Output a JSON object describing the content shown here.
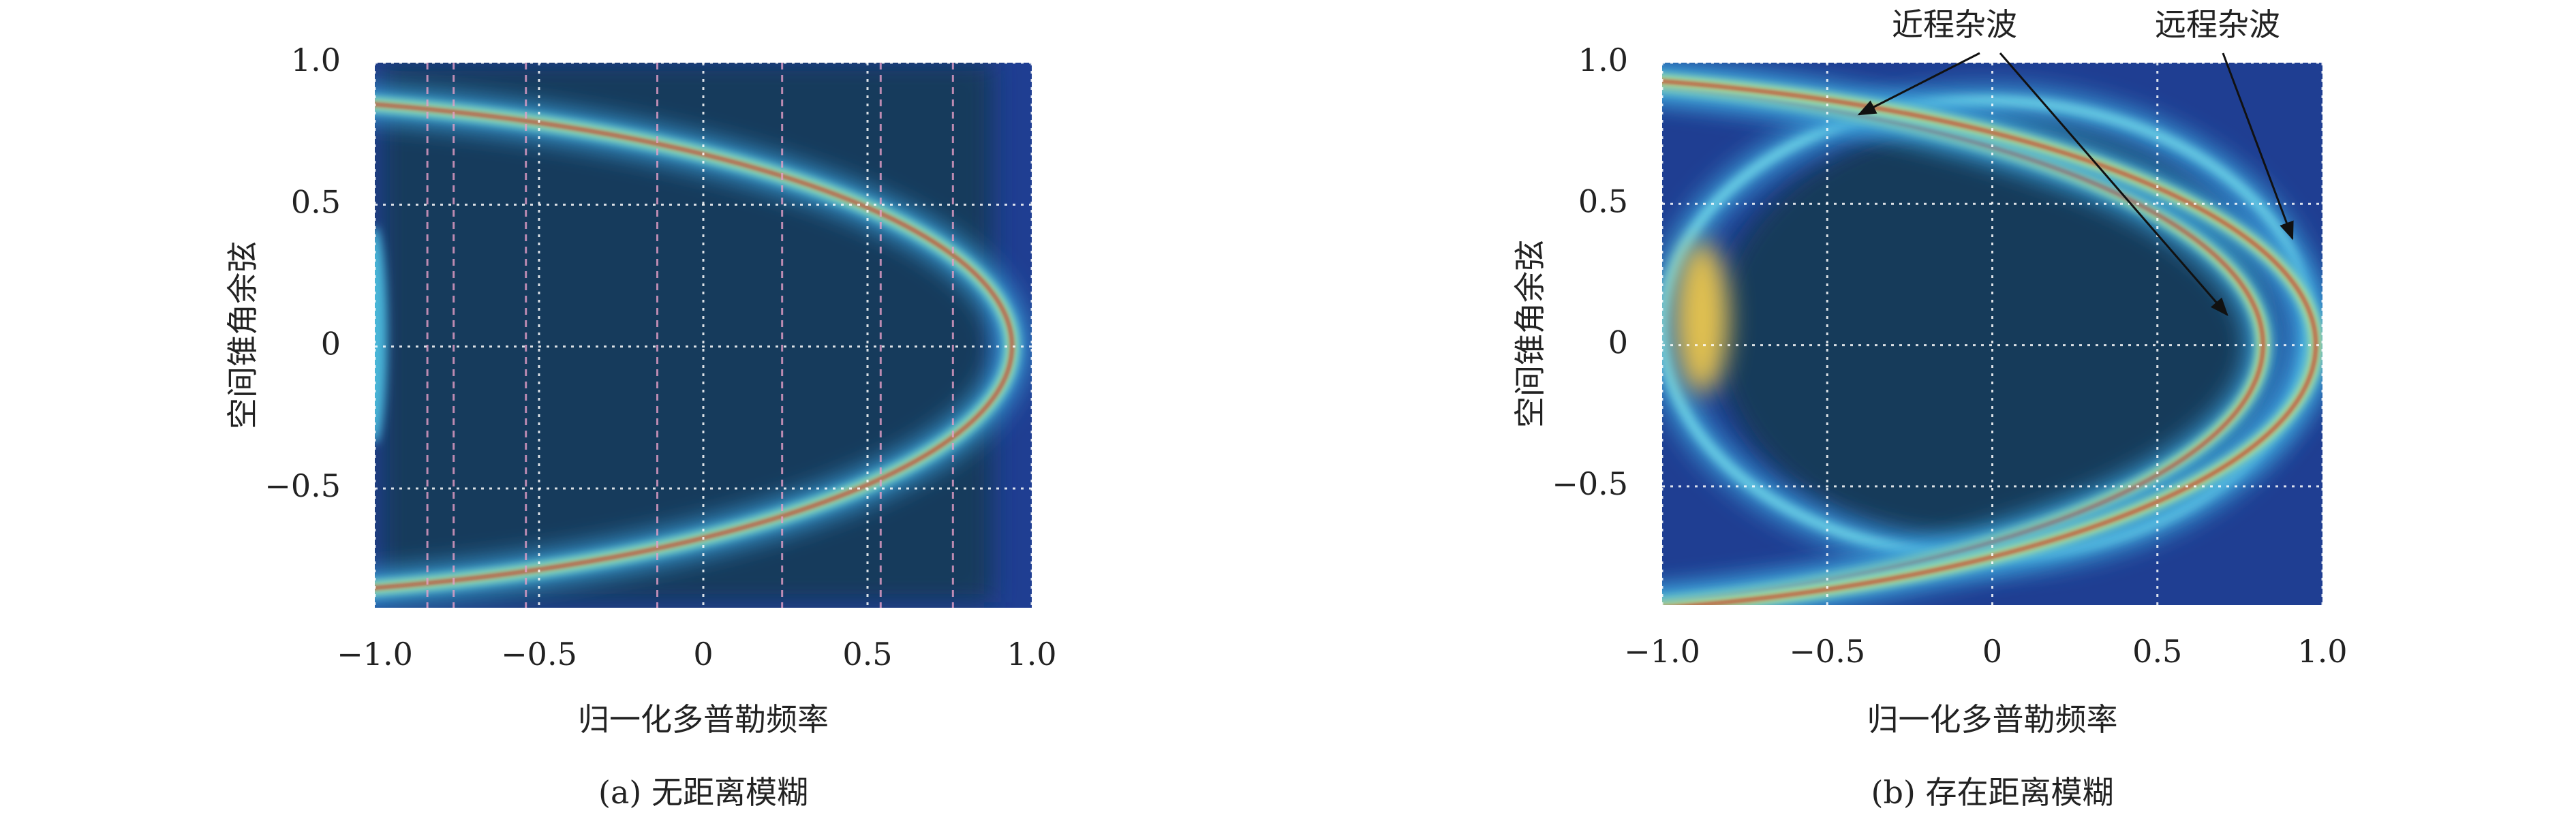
{
  "chart_data": [
    {
      "type": "heatmap",
      "xlabel": "归一化多普勒频率",
      "ylabel": "空间锥角余弦",
      "caption": "(a) 无距离模糊",
      "xlim": [
        -1,
        1
      ],
      "ylim": [
        -0.92,
        1.0
      ],
      "xticks": [
        {
          "value": -1,
          "label": "−1.0"
        },
        {
          "value": -0.5,
          "label": "−0.5"
        },
        0,
        0.5,
        {
          "value": 1,
          "label": "1.0"
        }
      ],
      "yticks": [
        {
          "value": 1,
          "label": "1.0"
        },
        0.5,
        0,
        {
          "value": -0.5,
          "label": "−0.5"
        }
      ],
      "grid": true
    },
    {
      "type": "heatmap",
      "xlabel": "归一化多普勒频率",
      "ylabel": "空间锥角余弦",
      "caption": "(b) 存在距离模糊",
      "xlim": [
        -1,
        1
      ],
      "ylim": [
        -0.92,
        1.0
      ],
      "xticks": [
        {
          "value": -1,
          "label": "−1.0"
        },
        {
          "value": -0.5,
          "label": "−0.5"
        },
        0,
        0.5,
        {
          "value": 1,
          "label": "1.0"
        }
      ],
      "yticks": [
        {
          "value": 1,
          "label": "1.0"
        },
        0.5,
        0,
        {
          "value": -0.5,
          "label": "−0.5"
        }
      ],
      "grid": true,
      "annotations": [
        "近程杂波",
        "远程杂波"
      ]
    }
  ]
}
